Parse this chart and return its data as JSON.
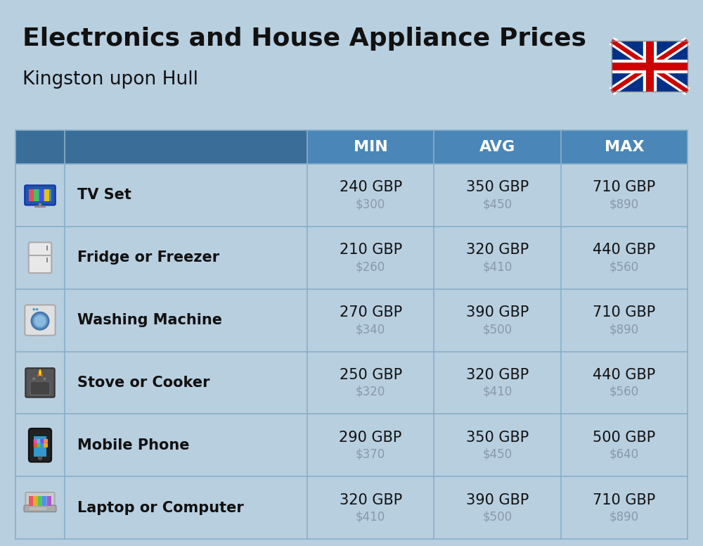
{
  "title": "Electronics and House Appliance Prices",
  "subtitle": "Kingston upon Hull",
  "bg_color": "#b8cfe0",
  "header_bg": "#4a86b8",
  "header_dark": "#3a6e99",
  "header_text": "#ffffff",
  "sep_color": "#8aafc8",
  "text_dark": "#111111",
  "text_gray": "#8899aa",
  "col_headers": [
    "MIN",
    "AVG",
    "MAX"
  ],
  "items": [
    {
      "name": "TV Set",
      "min_gbp": "240 GBP",
      "min_usd": "$300",
      "avg_gbp": "350 GBP",
      "avg_usd": "$450",
      "max_gbp": "710 GBP",
      "max_usd": "$890"
    },
    {
      "name": "Fridge or Freezer",
      "min_gbp": "210 GBP",
      "min_usd": "$260",
      "avg_gbp": "320 GBP",
      "avg_usd": "$410",
      "max_gbp": "440 GBP",
      "max_usd": "$560"
    },
    {
      "name": "Washing Machine",
      "min_gbp": "270 GBP",
      "min_usd": "$340",
      "avg_gbp": "390 GBP",
      "avg_usd": "$500",
      "max_gbp": "710 GBP",
      "max_usd": "$890"
    },
    {
      "name": "Stove or Cooker",
      "min_gbp": "250 GBP",
      "min_usd": "$320",
      "avg_gbp": "320 GBP",
      "avg_usd": "$410",
      "max_gbp": "440 GBP",
      "max_usd": "$560"
    },
    {
      "name": "Mobile Phone",
      "min_gbp": "290 GBP",
      "min_usd": "$370",
      "avg_gbp": "350 GBP",
      "avg_usd": "$450",
      "max_gbp": "500 GBP",
      "max_usd": "$640"
    },
    {
      "name": "Laptop or Computer",
      "min_gbp": "320 GBP",
      "min_usd": "$410",
      "avg_gbp": "390 GBP",
      "avg_usd": "$500",
      "max_gbp": "710 GBP",
      "max_usd": "$890"
    }
  ],
  "title_fs": 26,
  "subtitle_fs": 19,
  "header_fs": 16,
  "name_fs": 15,
  "gbp_fs": 15,
  "usd_fs": 12
}
